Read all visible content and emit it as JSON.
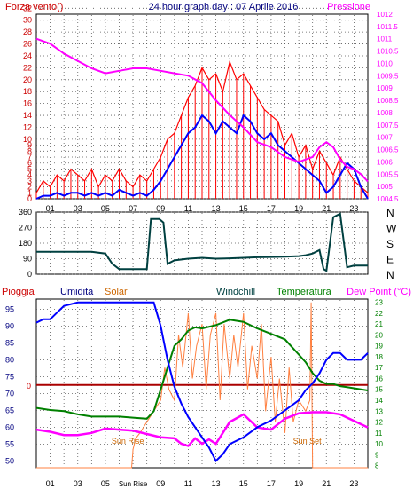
{
  "header": {
    "left_label": "Forza vento()",
    "title": "24 hour graph day : 07 Aprile 2016",
    "right_label": "Pressione"
  },
  "colors": {
    "frame": "#000000",
    "grid": "#5a5a5a",
    "wind": "#ff0000",
    "gust_avg": "#0000ff",
    "pressure": "#ff00ff",
    "wind_dir": "#004040",
    "humidity": "#0000ff",
    "solar": "#ff8040",
    "temperature": "#008000",
    "rain": "#aa0000",
    "dew": "#ff00ff",
    "left_axis_text": "#cc0000",
    "humidity_axis_text": "#000080",
    "temp_axis_text": "#008000",
    "pressure_axis_text": "#ff00ff",
    "sun_text": "#cc6600"
  },
  "chart_data": [
    {
      "type": "line",
      "name": "top-panel",
      "x_ticks": [
        "01",
        "03",
        "05",
        "07",
        "09",
        "11",
        "13",
        "15",
        "17",
        "19",
        "21",
        "23"
      ],
      "y_left_ticks": [
        0,
        1,
        2,
        3,
        4,
        5,
        6,
        7,
        8,
        9,
        10,
        12,
        14,
        16,
        18,
        20,
        22,
        24,
        26,
        28,
        30,
        32
      ],
      "y_left_range": [
        0,
        31
      ],
      "y_right_ticks": [
        "1004.5",
        "1005",
        "1005.5",
        "1006",
        "1006.5",
        "1007",
        "1007.5",
        "1008",
        "1008.5",
        "1009",
        "1009.5",
        "1010",
        "1010.5",
        "1011",
        "1011.5",
        "1012"
      ],
      "y_right_range": [
        1004.5,
        1012
      ],
      "series": [
        {
          "key": "wind",
          "x": [
            0,
            0.5,
            1,
            1.5,
            2,
            2.5,
            3,
            3.5,
            4,
            4.5,
            5,
            5.5,
            6,
            6.5,
            7,
            7.5,
            8,
            8.5,
            9,
            9.5,
            10,
            10.5,
            11,
            11.5,
            12,
            12.5,
            13,
            13.5,
            14,
            14.5,
            15,
            15.5,
            16,
            16.5,
            17,
            17.5,
            18,
            18.5,
            19,
            19.5,
            20,
            20.5,
            21,
            21.5,
            22,
            22.5,
            23,
            23.5,
            24
          ],
          "y": [
            1,
            3,
            2,
            4,
            3,
            5,
            4,
            3,
            5,
            2,
            4,
            3,
            5,
            3,
            2,
            4,
            3,
            5,
            7,
            10,
            11,
            14,
            17,
            19,
            22,
            20,
            21,
            18,
            23,
            20,
            21,
            19,
            17,
            15,
            14,
            13,
            9,
            11,
            7,
            9,
            5,
            8,
            6,
            4,
            7,
            5,
            3,
            2,
            1
          ]
        },
        {
          "key": "gust_avg",
          "x": [
            0,
            0.5,
            1,
            1.5,
            2,
            2.5,
            3,
            3.5,
            4,
            4.5,
            5,
            5.5,
            6,
            6.5,
            7,
            7.5,
            8,
            8.5,
            9,
            9.5,
            10,
            10.5,
            11,
            11.5,
            12,
            12.5,
            13,
            13.5,
            14,
            14.5,
            15,
            15.5,
            16,
            16.5,
            17,
            17.5,
            18,
            18.5,
            19,
            19.5,
            20,
            20.5,
            21,
            21.5,
            22,
            22.5,
            23,
            23.5,
            24
          ],
          "y": [
            0,
            0.5,
            0.5,
            1,
            0.5,
            1,
            1,
            0.5,
            1,
            0.5,
            1,
            0.5,
            1.5,
            1,
            0.5,
            1,
            0.5,
            1.5,
            3,
            5,
            7,
            9,
            11,
            12,
            14,
            13,
            11,
            13,
            12,
            11,
            14,
            13,
            11,
            10,
            11,
            9,
            8,
            7,
            6,
            5,
            4,
            3,
            1,
            2,
            4,
            6,
            5,
            2,
            0
          ]
        },
        {
          "key": "pressure",
          "x": [
            0,
            1,
            2,
            3,
            4,
            5,
            6,
            7,
            8,
            9,
            10,
            11,
            12,
            13,
            14,
            15,
            16,
            17,
            18,
            19,
            20,
            20.5,
            21,
            21.5,
            22,
            22.5,
            23,
            23.5,
            24
          ],
          "y": [
            1011,
            1010.8,
            1010.4,
            1010.1,
            1009.8,
            1009.6,
            1009.7,
            1009.8,
            1009.8,
            1009.7,
            1009.6,
            1009.5,
            1009.2,
            1008.5,
            1007.9,
            1007.4,
            1006.8,
            1006.6,
            1006.2,
            1006,
            1006.2,
            1006.6,
            1006.8,
            1006.6,
            1006.1,
            1005.8,
            1005.7,
            1005.5,
            1005.2
          ]
        }
      ]
    },
    {
      "type": "line",
      "name": "wind-direction",
      "y_ticks": [
        "360",
        "270",
        "180",
        "90",
        "0"
      ],
      "y_range": [
        0,
        360
      ],
      "dir_labels": [
        "N",
        "W",
        "S",
        "E",
        "N"
      ],
      "series": [
        {
          "key": "wind_dir",
          "x": [
            0,
            1,
            2,
            3,
            4,
            5,
            5.5,
            6,
            6.5,
            7,
            7.5,
            8,
            8.3,
            8.6,
            8.9,
            9.2,
            9.5,
            10,
            11,
            12,
            13,
            14,
            15,
            16,
            17,
            18,
            19,
            19.5,
            20,
            20.5,
            20.8,
            21,
            21.5,
            22,
            22.5,
            23,
            24
          ],
          "y": [
            130,
            130,
            130,
            130,
            130,
            120,
            60,
            30,
            30,
            30,
            30,
            30,
            320,
            320,
            320,
            300,
            60,
            80,
            90,
            95,
            90,
            92,
            95,
            98,
            100,
            102,
            105,
            110,
            120,
            140,
            30,
            20,
            330,
            350,
            40,
            50,
            50
          ]
        }
      ]
    },
    {
      "type": "line",
      "name": "bottom-panel",
      "legend": [
        "Pioggia",
        "Umidita",
        "Solar",
        "Windchill",
        "Temperatura",
        "Dew Point (°C)"
      ],
      "x_ticks": [
        "01",
        "03",
        "05",
        "Sun Rise",
        "09",
        "11",
        "13",
        "15",
        "17",
        "19",
        "21",
        "23"
      ],
      "y_left_ticks": [
        50,
        55,
        60,
        65,
        70,
        75,
        80,
        85,
        90,
        95
      ],
      "y_left_range": [
        48,
        98
      ],
      "y_right_ticks": [
        8,
        9,
        10,
        11,
        12,
        13,
        14,
        15,
        16,
        17,
        18,
        19,
        20,
        21,
        22,
        23
      ],
      "y_right_range": [
        7.8,
        23.3
      ],
      "rain_label": "0",
      "sun_rise_label": "Sun Rise",
      "sun_set_label": "Sun Set",
      "sun_rise_hour": 7,
      "sun_set_hour": 20,
      "series": [
        {
          "key": "humidity",
          "x": [
            0,
            0.5,
            1,
            1.5,
            2,
            3,
            4,
            5,
            6,
            7,
            8,
            8.5,
            9,
            9.5,
            10,
            10.5,
            11,
            11.5,
            12,
            12.5,
            13,
            13.5,
            14,
            15,
            16,
            17,
            18,
            19,
            19.5,
            20,
            20.5,
            21,
            21.5,
            22,
            22.5,
            23,
            23.5,
            24
          ],
          "y": [
            91,
            92,
            92,
            94,
            96,
            97,
            97,
            97,
            97,
            97,
            97,
            97,
            90,
            80,
            72,
            67,
            63,
            60,
            57,
            54,
            50,
            52,
            55,
            57,
            60,
            62,
            65,
            68,
            71,
            73,
            76,
            80,
            82,
            82,
            80,
            80,
            80,
            82
          ]
        },
        {
          "key": "temperature",
          "x": [
            0,
            1,
            2,
            3,
            4,
            5,
            6,
            7,
            8,
            8.5,
            9,
            9.5,
            10,
            10.5,
            11,
            11.5,
            12,
            13,
            14,
            15,
            16,
            17,
            18,
            18.5,
            19,
            19.5,
            20,
            20.5,
            21,
            21.5,
            22,
            22.5,
            23,
            23.5,
            24
          ],
          "y": [
            13.3,
            13.1,
            13,
            12.7,
            12.5,
            12.5,
            12.5,
            12.4,
            12.3,
            13,
            15,
            17,
            19,
            19.6,
            20.4,
            20.7,
            20.6,
            20.9,
            21.4,
            21.2,
            20.6,
            20.1,
            19.6,
            18.9,
            18.2,
            17.5,
            16.5,
            15.8,
            15.5,
            15.5,
            15.3,
            15.2,
            15.1,
            15,
            14.9
          ]
        },
        {
          "key": "dew",
          "x": [
            0,
            1,
            2,
            3,
            4,
            5,
            6,
            7,
            8,
            9,
            10,
            10.5,
            11,
            11.5,
            12,
            12.5,
            13,
            13.5,
            14,
            15,
            16,
            17,
            18,
            19,
            20,
            21,
            22,
            23,
            24
          ],
          "y": [
            11.3,
            11.1,
            10.8,
            10.8,
            11,
            11.4,
            11.3,
            11.2,
            10.9,
            10.6,
            10.5,
            10,
            9.8,
            10.5,
            10,
            10.4,
            10,
            11,
            12,
            12.7,
            11.5,
            11.3,
            12.3,
            12.8,
            12.9,
            12.9,
            12.7,
            12.1,
            11.5
          ]
        },
        {
          "key": "solar",
          "x": [
            0,
            6.9,
            7,
            7.2,
            7.5,
            8,
            8.5,
            9,
            9.3,
            9.6,
            10,
            10.3,
            10.6,
            11,
            11.3,
            11.6,
            12,
            12.3,
            12.6,
            13,
            13.3,
            13.6,
            14,
            14.3,
            14.6,
            15,
            15.3,
            15.6,
            16,
            16.3,
            16.6,
            17,
            17.3,
            17.6,
            18,
            18.3,
            18.6,
            19,
            19.5,
            19.8,
            19.9,
            20,
            24
          ],
          "y": [
            7.8,
            7.8,
            9.5,
            10.5,
            11,
            12,
            13,
            14,
            17,
            15,
            14,
            20,
            17,
            22,
            16,
            19,
            21,
            15,
            20,
            22,
            14,
            21,
            16,
            20,
            17,
            22,
            15,
            19,
            16,
            21,
            13,
            18,
            12,
            16,
            11,
            17,
            12,
            14,
            13,
            14,
            23,
            7.8,
            7.8
          ]
        },
        {
          "key": "rain",
          "x": [
            0,
            24
          ],
          "y": [
            15.4,
            15.4
          ]
        }
      ]
    }
  ]
}
